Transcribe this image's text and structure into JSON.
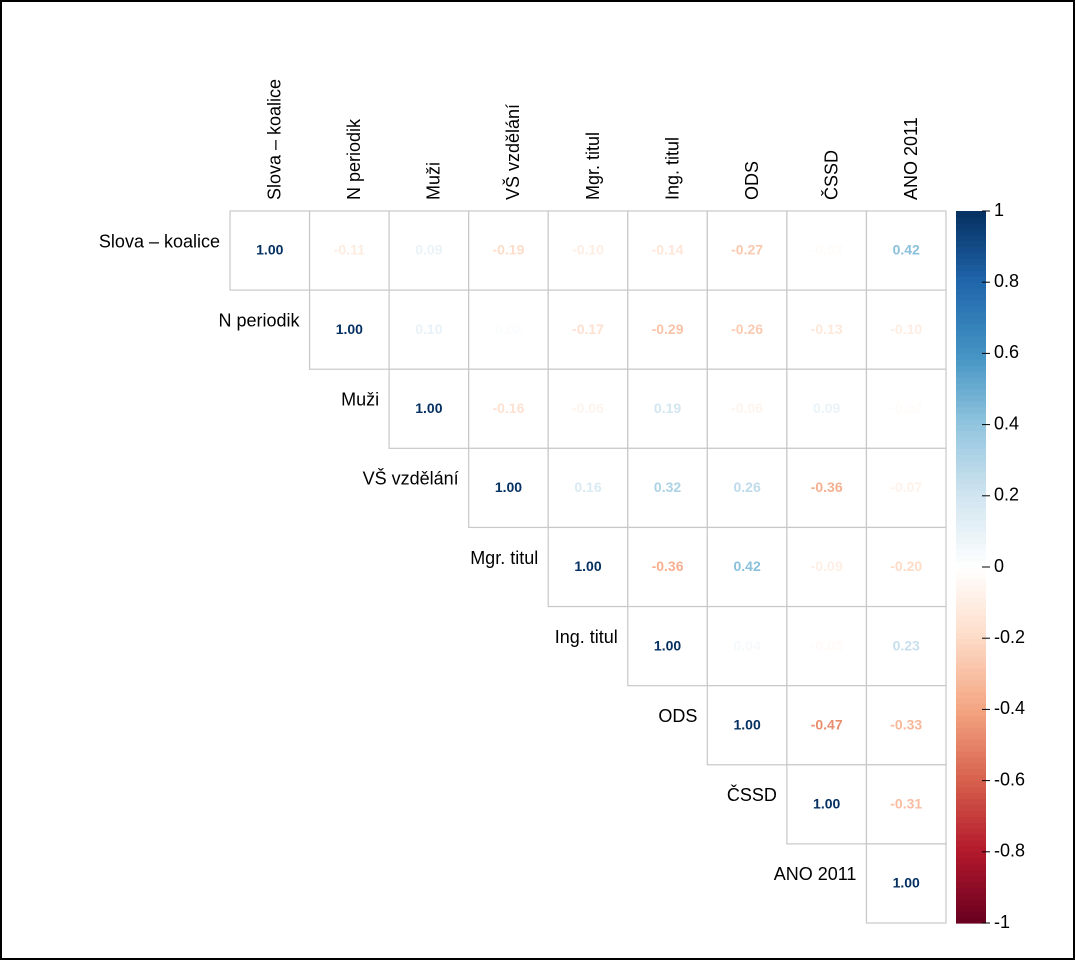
{
  "chart_data": {
    "type": "corrplot",
    "categories": [
      "Slova – koalice",
      "N periodik",
      "Muži",
      "VŠ vzdělání",
      "Mgr. titul",
      "Ing. titul",
      "ODS",
      "ČSSD",
      "ANO 2011"
    ],
    "values": [
      [
        1,
        -0.11,
        0.09,
        -0.19,
        -0.1,
        -0.14,
        -0.27,
        -0.02,
        0.42
      ],
      [
        null,
        1,
        0.1,
        0.02,
        -0.17,
        -0.29,
        -0.26,
        -0.13,
        -0.1
      ],
      [
        null,
        null,
        1,
        -0.16,
        -0.06,
        0.19,
        -0.06,
        0.09,
        -0.02
      ],
      [
        null,
        null,
        null,
        1,
        0.16,
        0.32,
        0.26,
        -0.36,
        -0.07
      ],
      [
        null,
        null,
        null,
        null,
        1,
        -0.36,
        0.42,
        -0.09,
        -0.2
      ],
      [
        null,
        null,
        null,
        null,
        null,
        1,
        0.04,
        -0.03,
        0.23
      ],
      [
        null,
        null,
        null,
        null,
        null,
        null,
        1,
        -0.47,
        -0.33
      ],
      [
        null,
        null,
        null,
        null,
        null,
        null,
        null,
        1,
        -0.31
      ],
      [
        null,
        null,
        null,
        null,
        null,
        null,
        null,
        null,
        1
      ]
    ],
    "value_labels": [
      [
        "1.00",
        "-0.11",
        "0.09",
        "-0.19",
        "-0.10",
        "-0.14",
        "-0.27",
        "-0.02",
        "0.42"
      ],
      [
        null,
        "1.00",
        "0.10",
        "0.02",
        "-0.17",
        "-0.29",
        "-0.26",
        "-0.13",
        "-0.10"
      ],
      [
        null,
        null,
        "1.00",
        "-0.16",
        "-0.06",
        "0.19",
        "-0.06",
        "0.09",
        "-0.02"
      ],
      [
        null,
        null,
        null,
        "1.00",
        "0.16",
        "0.32",
        "0.26",
        "-0.36",
        "-0.07"
      ],
      [
        null,
        null,
        null,
        null,
        "1.00",
        "-0.36",
        "0.42",
        "-0.09",
        "-0.20"
      ],
      [
        null,
        null,
        null,
        null,
        null,
        "1.00",
        "0.04",
        "-0.03",
        "0.23"
      ],
      [
        null,
        null,
        null,
        null,
        null,
        null,
        "1.00",
        "-0.47",
        "-0.33"
      ],
      [
        null,
        null,
        null,
        null,
        null,
        null,
        null,
        "1.00",
        "-0.31"
      ],
      [
        null,
        null,
        null,
        null,
        null,
        null,
        null,
        null,
        "1.00"
      ]
    ],
    "colorscale": [
      "#67001F",
      "#B2182B",
      "#D6604D",
      "#F4A582",
      "#FDDBC7",
      "#FFFFFF",
      "#D1E5F0",
      "#92C5DE",
      "#4393C3",
      "#2166AC",
      "#053061"
    ],
    "clim": [
      -1,
      1
    ],
    "cticks": [
      1,
      0.8,
      0.6,
      0.4,
      0.2,
      0,
      -0.2,
      -0.4,
      -0.6,
      -0.8,
      -1
    ]
  }
}
